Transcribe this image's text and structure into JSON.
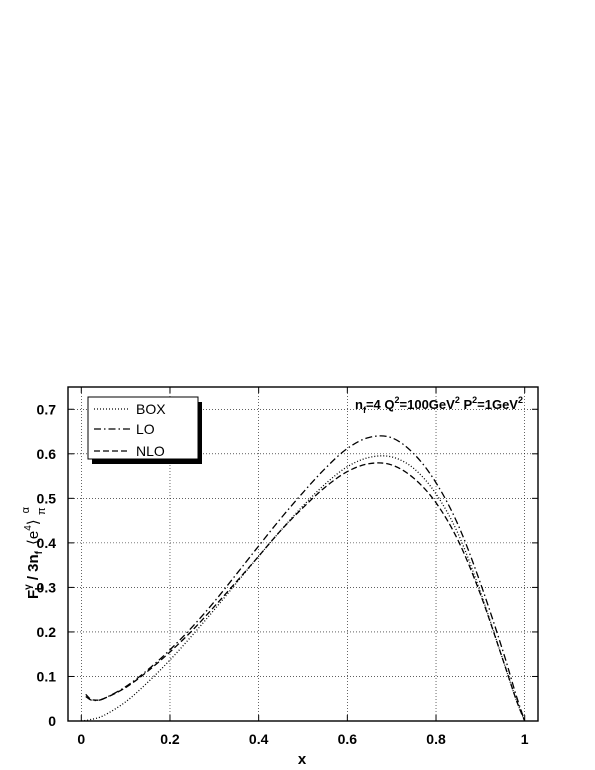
{
  "chart_data": {
    "type": "line",
    "xlabel": "x",
    "annotation": {
      "parts": [
        "n",
        "f",
        "=4 Q",
        "2",
        "=100GeV",
        "2",
        " P",
        "2",
        "=1GeV",
        "2"
      ]
    },
    "ylabel": {
      "parts": [
        "F",
        "γ",
        "L",
        "/ 3n",
        "f",
        "⟨e",
        "4",
        "⟩",
        "α",
        "π"
      ]
    },
    "xlim": [
      -0.03,
      1.03
    ],
    "ylim": [
      0,
      0.75
    ],
    "xticks": [
      0,
      0.2,
      0.4,
      0.6,
      0.8,
      1
    ],
    "xtick_labels": [
      "0",
      "0.2",
      "0.4",
      "0.6",
      "0.8",
      "1"
    ],
    "yticks": [
      0,
      0.1,
      0.2,
      0.3,
      0.4,
      0.5,
      0.6,
      0.7
    ],
    "ytick_labels": [
      "0",
      "0.1",
      "0.2",
      "0.3",
      "0.4",
      "0.5",
      "0.6",
      "0.7"
    ],
    "grid": true,
    "legend_position": "top-left",
    "series": [
      {
        "name": "BOX",
        "style": "dotted",
        "x": [
          0,
          0.02,
          0.05,
          0.1,
          0.15,
          0.2,
          0.25,
          0.3,
          0.35,
          0.4,
          0.45,
          0.5,
          0.55,
          0.6,
          0.65,
          0.7,
          0.75,
          0.8,
          0.85,
          0.9,
          0.95,
          0.98,
          1.0
        ],
        "y": [
          0,
          0.003,
          0.012,
          0.043,
          0.087,
          0.137,
          0.192,
          0.25,
          0.31,
          0.37,
          0.428,
          0.483,
          0.532,
          0.571,
          0.592,
          0.593,
          0.567,
          0.51,
          0.42,
          0.29,
          0.14,
          0.05,
          0
        ]
      },
      {
        "name": "LO",
        "style": "dashdot",
        "x": [
          0.01,
          0.02,
          0.03,
          0.05,
          0.1,
          0.15,
          0.2,
          0.25,
          0.3,
          0.35,
          0.4,
          0.45,
          0.5,
          0.55,
          0.6,
          0.65,
          0.7,
          0.75,
          0.8,
          0.85,
          0.9,
          0.95,
          0.98,
          1.0
        ],
        "y": [
          0.055,
          0.048,
          0.046,
          0.05,
          0.077,
          0.115,
          0.16,
          0.211,
          0.268,
          0.33,
          0.393,
          0.455,
          0.513,
          0.567,
          0.612,
          0.637,
          0.636,
          0.6,
          0.535,
          0.44,
          0.31,
          0.16,
          0.06,
          0
        ]
      },
      {
        "name": "NLO",
        "style": "dashed",
        "x": [
          0.01,
          0.02,
          0.03,
          0.05,
          0.1,
          0.15,
          0.2,
          0.25,
          0.3,
          0.35,
          0.4,
          0.45,
          0.5,
          0.55,
          0.6,
          0.65,
          0.7,
          0.75,
          0.8,
          0.85,
          0.9,
          0.95,
          0.98,
          1.0
        ],
        "y": [
          0.06,
          0.05,
          0.047,
          0.05,
          0.075,
          0.112,
          0.155,
          0.203,
          0.257,
          0.313,
          0.37,
          0.428,
          0.479,
          0.525,
          0.56,
          0.578,
          0.575,
          0.545,
          0.49,
          0.405,
          0.285,
          0.14,
          0.05,
          0
        ]
      }
    ]
  }
}
